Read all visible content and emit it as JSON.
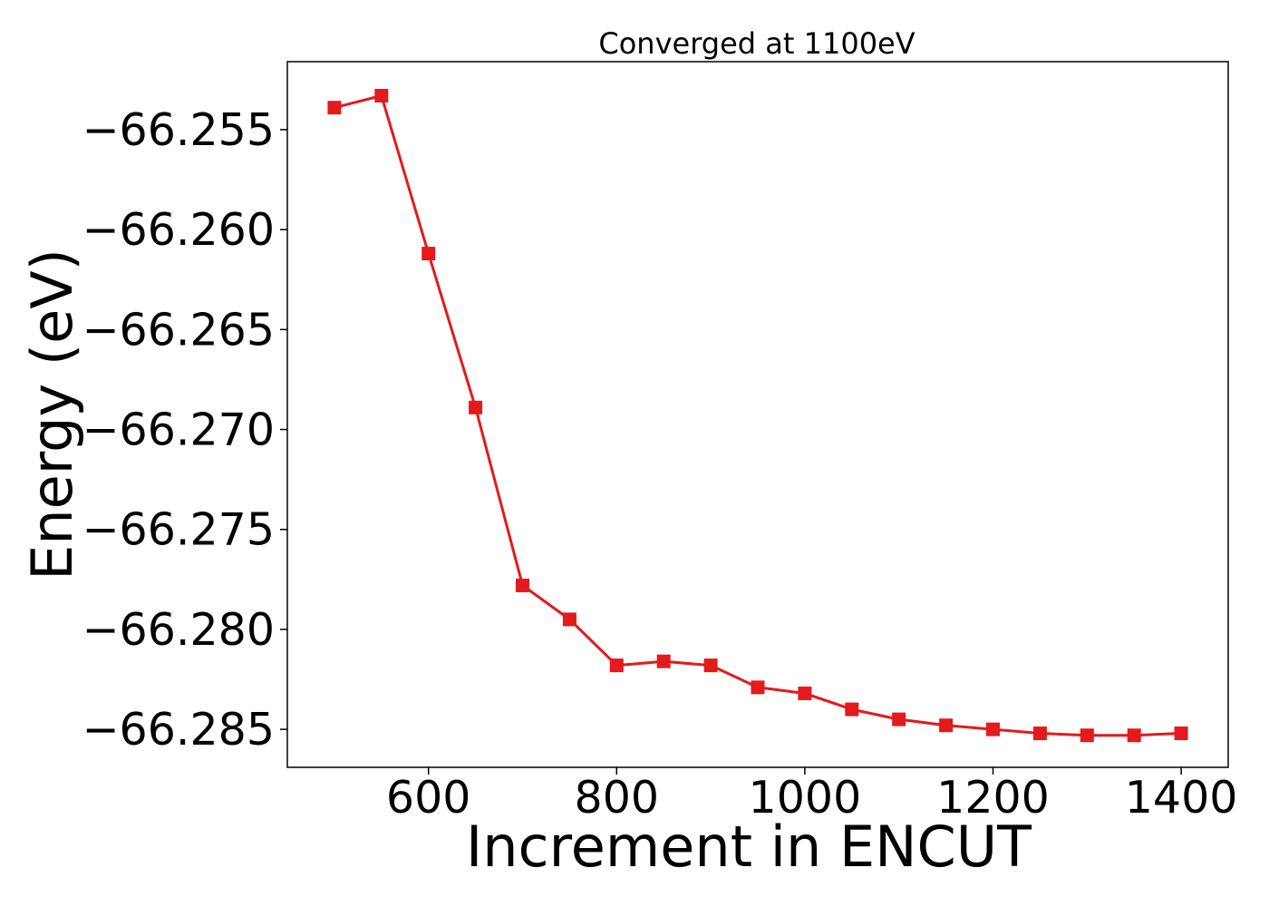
{
  "chart_data": {
    "type": "line",
    "title": "Converged at 1100eV",
    "xlabel": "Increment in ENCUT",
    "ylabel": "Energy (eV)",
    "xlim": [
      450,
      1450
    ],
    "ylim": [
      -66.2869,
      -66.2516
    ],
    "x_ticks": [
      600,
      800,
      1000,
      1200,
      1400
    ],
    "x_tick_labels": [
      "600",
      "800",
      "1000",
      "1200",
      "1400"
    ],
    "y_ticks": [
      -66.255,
      -66.26,
      -66.265,
      -66.27,
      -66.275,
      -66.28,
      -66.285
    ],
    "y_tick_labels": [
      "−66.255",
      "−66.260",
      "−66.265",
      "−66.270",
      "−66.275",
      "−66.280",
      "−66.285"
    ],
    "grid": false,
    "series": [
      {
        "color": "#e41a1c",
        "marker": "square",
        "x": [
          500,
          550,
          600,
          650,
          700,
          750,
          800,
          850,
          900,
          950,
          1000,
          1050,
          1100,
          1150,
          1200,
          1250,
          1300,
          1350,
          1400
        ],
        "y": [
          -66.2539,
          -66.2533,
          -66.2612,
          -66.2689,
          -66.2778,
          -66.2795,
          -66.2818,
          -66.2816,
          -66.2818,
          -66.2829,
          -66.2832,
          -66.284,
          -66.2845,
          -66.2848,
          -66.285,
          -66.2852,
          -66.2853,
          -66.2853,
          -66.2852
        ]
      }
    ]
  }
}
